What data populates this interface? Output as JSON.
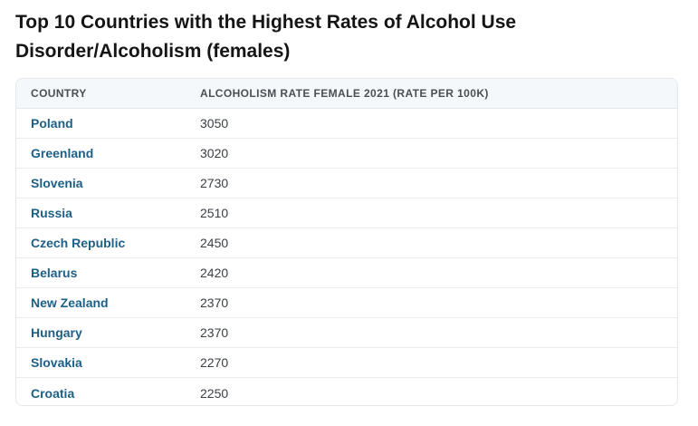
{
  "title": "Top 10 Countries with the Highest Rates of Alcohol Use Disorder/Alcoholism (females)",
  "table": {
    "headers": {
      "country": "COUNTRY",
      "rate": "ALCOHOLISM RATE FEMALE 2021 (RATE PER 100K)"
    },
    "rows": [
      {
        "country": "Poland",
        "rate": "3050"
      },
      {
        "country": "Greenland",
        "rate": "3020"
      },
      {
        "country": "Slovenia",
        "rate": "2730"
      },
      {
        "country": "Russia",
        "rate": "2510"
      },
      {
        "country": "Czech Republic",
        "rate": "2450"
      },
      {
        "country": "Belarus",
        "rate": "2420"
      },
      {
        "country": "New Zealand",
        "rate": "2370"
      },
      {
        "country": "Hungary",
        "rate": "2370"
      },
      {
        "country": "Slovakia",
        "rate": "2270"
      },
      {
        "country": "Croatia",
        "rate": "2250"
      }
    ]
  },
  "colors": {
    "country_link": "#1d5f86",
    "header_bg": "#f5f8fa",
    "border": "#e3e7ea"
  }
}
